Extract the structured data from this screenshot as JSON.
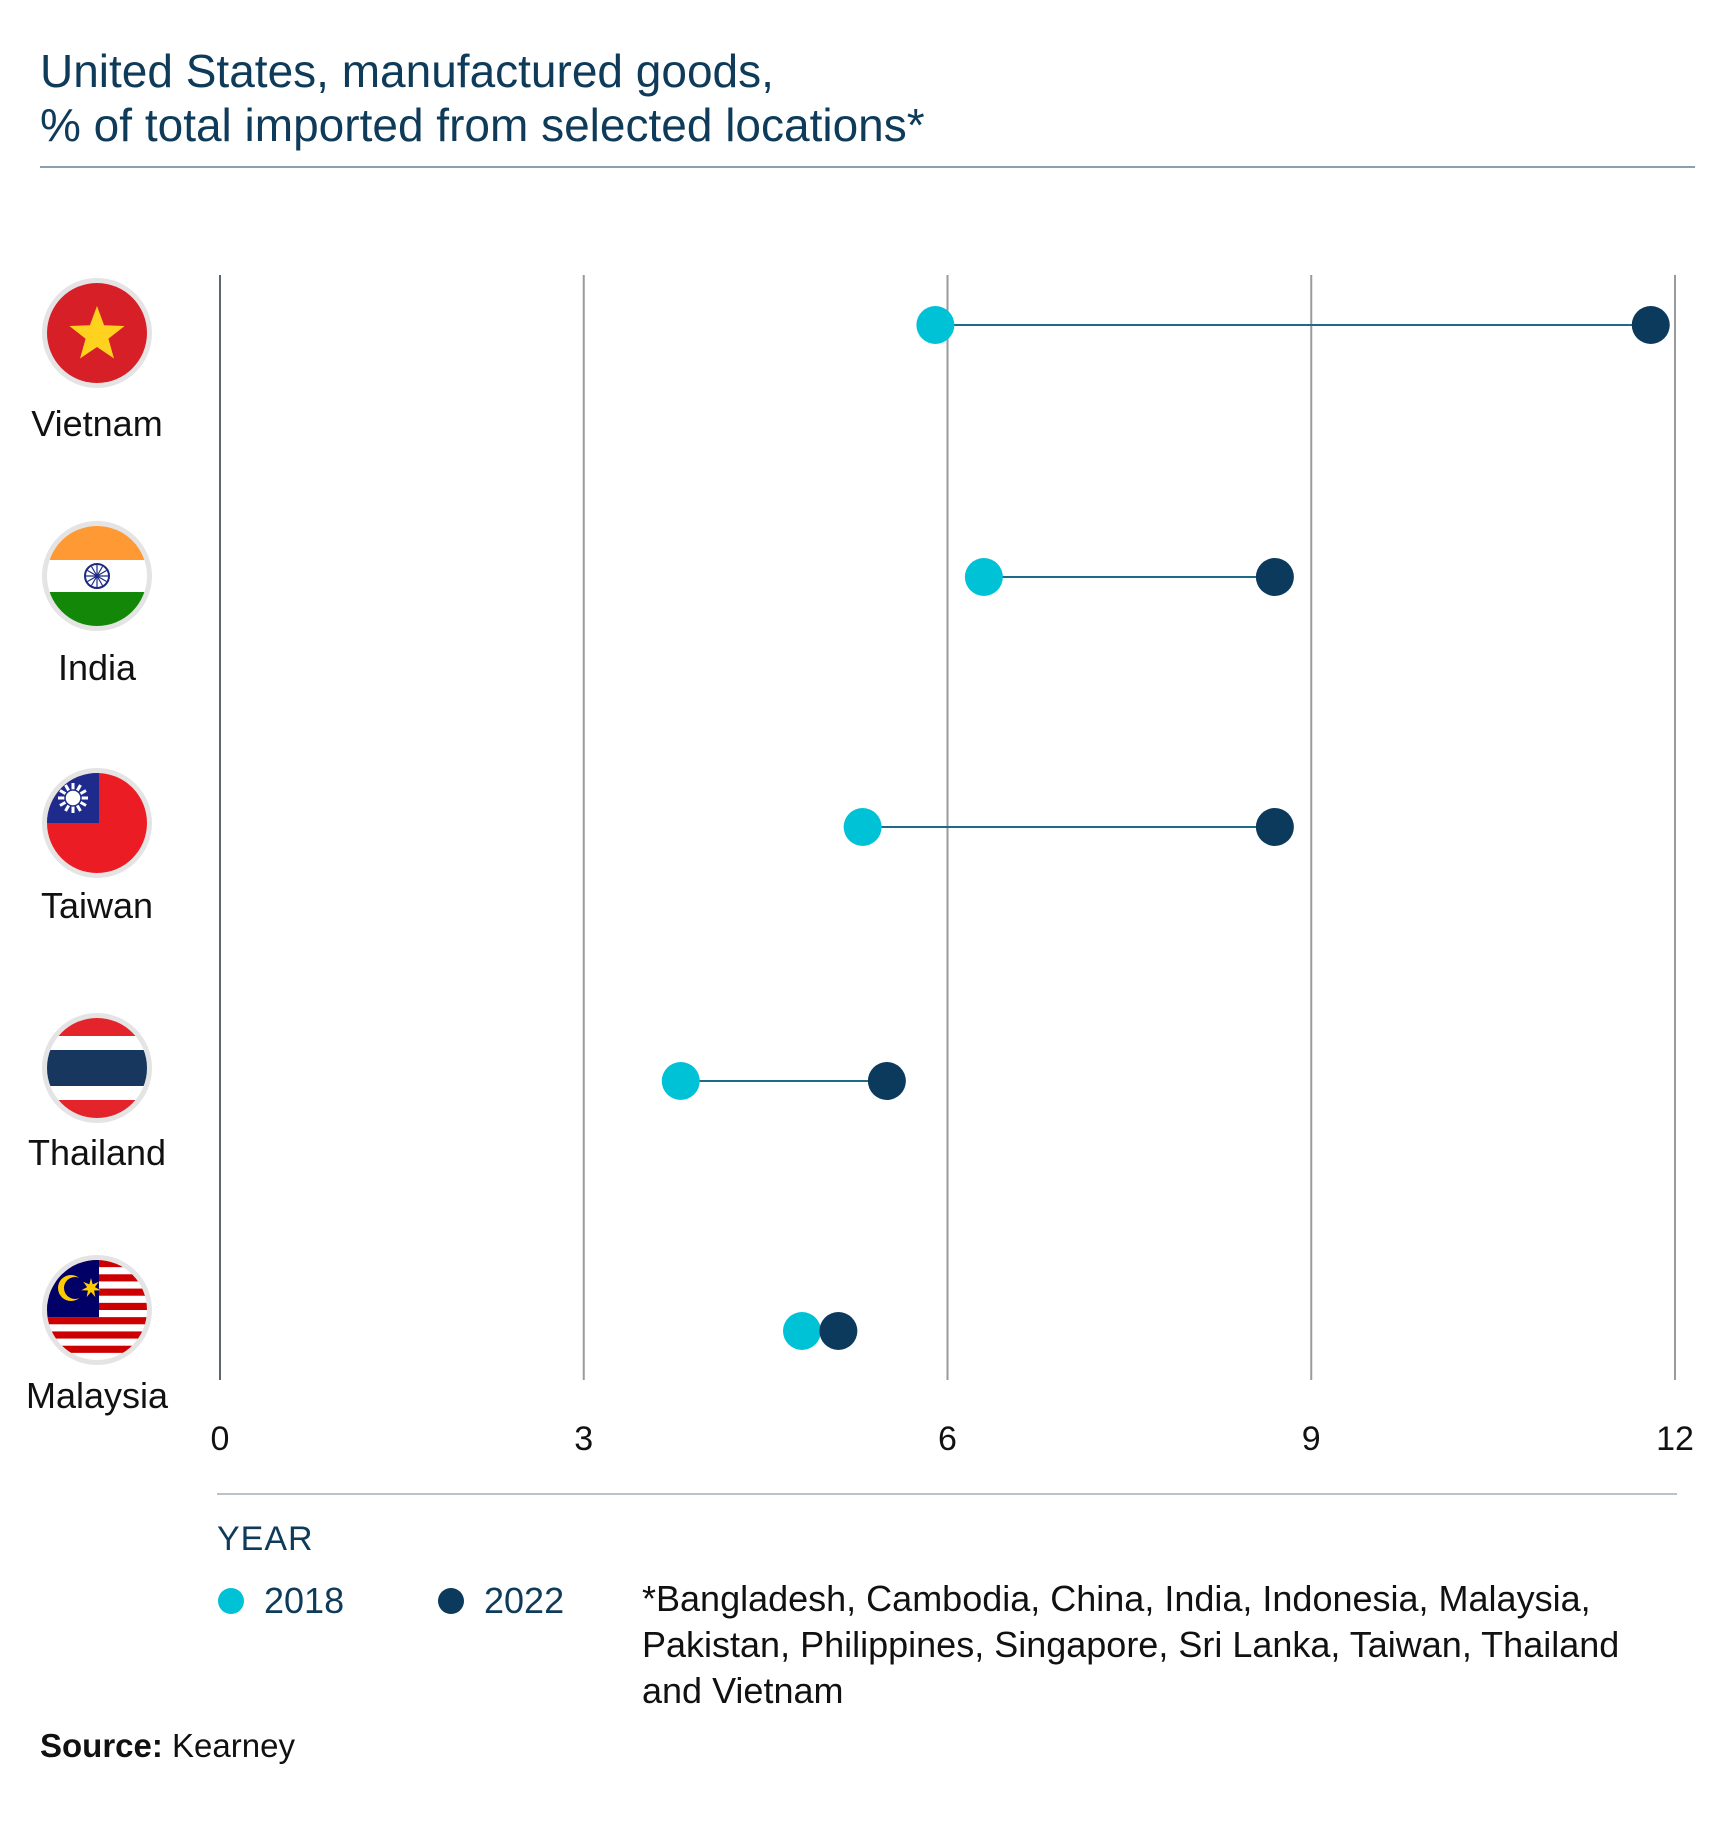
{
  "title_line1": "United States, manufactured goods,",
  "title_line2": "% of total imported from selected locations*",
  "colors": {
    "y2018": "#00c2d6",
    "y2022": "#0b3a5c",
    "title": "#0f3b5a",
    "grid": "#9a9a9a",
    "axis": "#5b6670"
  },
  "chart_data": {
    "type": "dumbbell",
    "categories": [
      "Vietnam",
      "India",
      "Taiwan",
      "Thailand",
      "Malaysia"
    ],
    "series": [
      {
        "name": "2018",
        "values": [
          5.9,
          6.3,
          5.3,
          3.8,
          4.8
        ]
      },
      {
        "name": "2022",
        "values": [
          11.8,
          8.7,
          8.7,
          5.5,
          5.1
        ]
      }
    ],
    "xticks": [
      0,
      3,
      6,
      9,
      12
    ],
    "xlim": [
      0,
      12
    ],
    "grid": true
  },
  "flags": [
    "vietnam-flag-icon",
    "india-flag-icon",
    "taiwan-flag-icon",
    "thailand-flag-icon",
    "malaysia-flag-icon"
  ],
  "legend": {
    "title": "YEAR",
    "items": [
      "2018",
      "2022"
    ]
  },
  "footnote": "*Bangladesh, Cambodia, China, India, Indonesia, Malaysia, Pakistan, Philippines, Singapore, Sri Lanka, Taiwan, Thailand and Vietnam",
  "source": {
    "label": "Source:",
    "text": " Kearney"
  }
}
